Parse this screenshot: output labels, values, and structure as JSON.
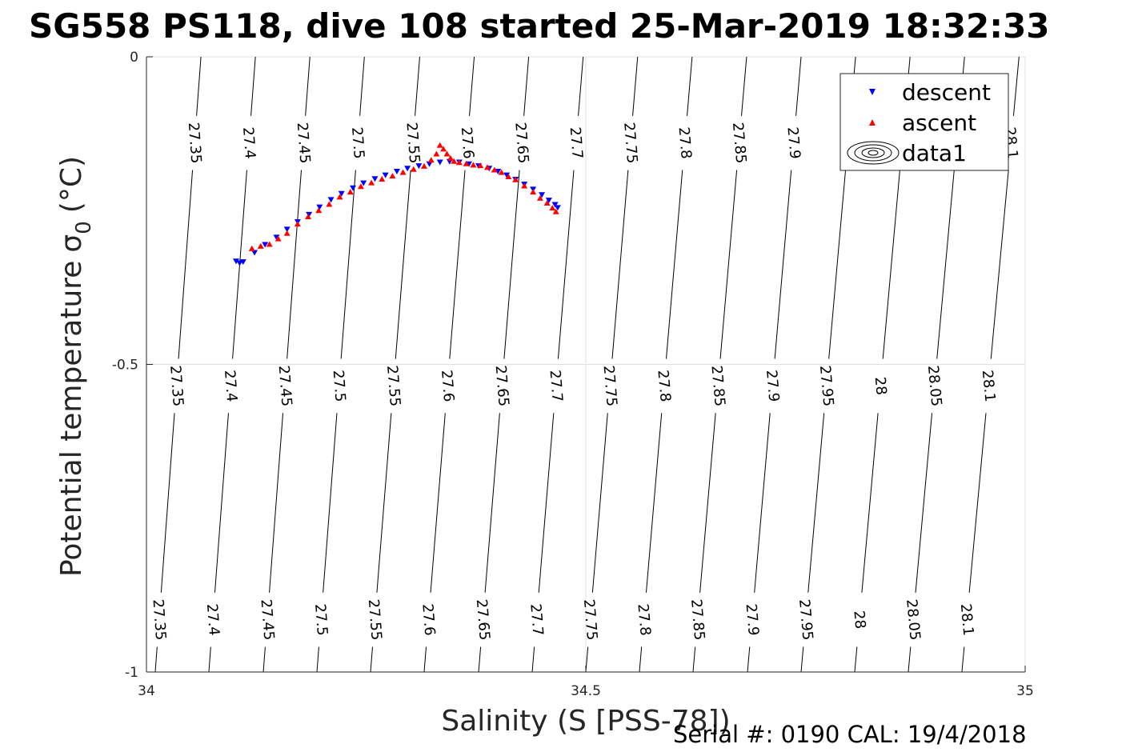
{
  "chart_data": {
    "type": "scatter",
    "title": "SG558 PS118, dive 108 started 25-Mar-2019 18:32:33",
    "xlabel": "Salinity (S [PSS-78])",
    "ylabel": "Potential temperature",
    "ylabel_symbol": "σ",
    "ylabel_subscript": "0",
    "ylabel_unit": "(°C)",
    "xlim": [
      34,
      35
    ],
    "ylim": [
      -1,
      0
    ],
    "xticks": [
      "34",
      "34.5",
      "35"
    ],
    "xtick_values": [
      34,
      34.5,
      35
    ],
    "yticks": [
      "0",
      "-0.5",
      "-1"
    ],
    "ytick_values": [
      0,
      -0.5,
      -1
    ],
    "grid": true,
    "legend_position": "top-right",
    "legend": [
      "descent",
      "ascent",
      "data1"
    ],
    "footer": "Serial #: 0190  CAL: 19/4/2018",
    "colors": {
      "descent": "#0000ff",
      "ascent": "#ff0000",
      "contour": "#000000",
      "grid": "#e0e0e0"
    },
    "contours": {
      "levels": [
        27.35,
        27.4,
        27.45,
        27.5,
        27.55,
        27.6,
        27.65,
        27.7,
        27.75,
        27.8,
        27.85,
        27.9,
        27.95,
        28,
        28.05,
        28.1
      ],
      "level_labels": [
        "27.35",
        "27.4",
        "27.45",
        "27.5",
        "27.55",
        "27.6",
        "27.65",
        "27.7",
        "27.75",
        "27.8",
        "27.85",
        "27.9",
        "27.95",
        "28",
        "28.05",
        "28.1"
      ],
      "s_at_top": [
        34.062,
        34.124,
        34.186,
        34.248,
        34.311,
        34.373,
        34.435,
        34.497,
        34.559,
        34.621,
        34.683,
        34.745,
        34.807,
        34.869,
        34.931,
        34.993
      ],
      "s_at_bottom": [
        34.01,
        34.071,
        34.133,
        34.194,
        34.255,
        34.316,
        34.378,
        34.439,
        34.5,
        34.561,
        34.622,
        34.684,
        34.745,
        34.806,
        34.867,
        34.928
      ],
      "labels_upper": [
        "27.35",
        "27.4",
        "27.45",
        "27.5",
        "27.55",
        "27.6",
        "27.65",
        "27.7",
        "27.75",
        "27.8",
        "27.85",
        "27.9",
        "",
        "",
        "",
        "28.1"
      ],
      "labels_middle": [
        "27.35",
        "27.4",
        "27.45",
        "27.5",
        "27.55",
        "27.6",
        "27.65",
        "27.7",
        "27.75",
        "27.8",
        "27.85",
        "27.9",
        "27.95",
        "28",
        "28.05",
        "28.1"
      ],
      "labels_lower": [
        "27.35",
        "27.4",
        "27.45",
        "27.5",
        "27.55",
        "27.6",
        "27.65",
        "27.7",
        "27.75",
        "27.8",
        "27.85",
        "27.9",
        "27.95",
        "28",
        "28.05",
        "28.1"
      ]
    },
    "series": [
      {
        "name": "descent",
        "marker": "triangle-down",
        "x": [
          34.102,
          34.106,
          34.11,
          34.123,
          34.135,
          34.148,
          34.16,
          34.172,
          34.185,
          34.197,
          34.21,
          34.222,
          34.235,
          34.247,
          34.26,
          34.272,
          34.285,
          34.297,
          34.31,
          34.322,
          34.334,
          34.345,
          34.356,
          34.367,
          34.378,
          34.39,
          34.4,
          34.41,
          34.42,
          34.43,
          34.44,
          34.45,
          34.458,
          34.465,
          34.468
        ],
        "y": [
          -0.332,
          -0.335,
          -0.333,
          -0.318,
          -0.305,
          -0.293,
          -0.28,
          -0.268,
          -0.256,
          -0.244,
          -0.232,
          -0.222,
          -0.213,
          -0.205,
          -0.198,
          -0.192,
          -0.186,
          -0.181,
          -0.177,
          -0.174,
          -0.171,
          -0.17,
          -0.171,
          -0.174,
          -0.177,
          -0.181,
          -0.186,
          -0.192,
          -0.199,
          -0.207,
          -0.215,
          -0.224,
          -0.233,
          -0.24,
          -0.245
        ]
      },
      {
        "name": "ascent",
        "marker": "triangle-up",
        "x": [
          34.12,
          34.13,
          34.14,
          34.15,
          34.16,
          34.172,
          34.184,
          34.196,
          34.208,
          34.22,
          34.232,
          34.244,
          34.256,
          34.268,
          34.28,
          34.292,
          34.304,
          34.316,
          34.324,
          34.33,
          34.334,
          34.338,
          34.342,
          34.346,
          34.35,
          34.356,
          34.364,
          34.372,
          34.38,
          34.388,
          34.396,
          34.404,
          34.412,
          34.42,
          34.43,
          34.44,
          34.448,
          34.456,
          34.462,
          34.466
        ],
        "y": [
          -0.312,
          -0.308,
          -0.305,
          -0.296,
          -0.287,
          -0.272,
          -0.26,
          -0.25,
          -0.24,
          -0.228,
          -0.22,
          -0.211,
          -0.205,
          -0.199,
          -0.194,
          -0.188,
          -0.183,
          -0.178,
          -0.168,
          -0.158,
          -0.144,
          -0.15,
          -0.158,
          -0.165,
          -0.17,
          -0.172,
          -0.174,
          -0.176,
          -0.177,
          -0.18,
          -0.184,
          -0.188,
          -0.195,
          -0.2,
          -0.21,
          -0.22,
          -0.23,
          -0.238,
          -0.246,
          -0.252
        ]
      }
    ]
  }
}
